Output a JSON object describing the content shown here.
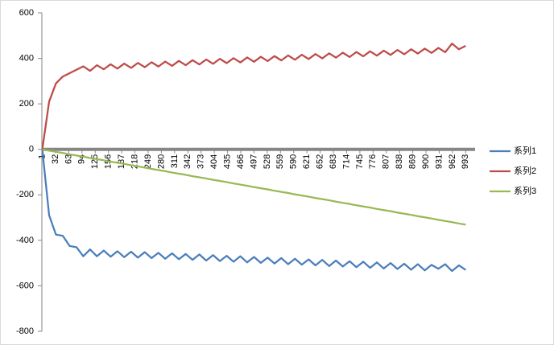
{
  "chart_data": {
    "type": "line",
    "x": [
      1,
      17,
      33,
      49,
      65,
      81,
      97,
      113,
      129,
      145,
      161,
      177,
      193,
      209,
      225,
      241,
      257,
      273,
      289,
      305,
      321,
      337,
      353,
      369,
      385,
      401,
      417,
      433,
      449,
      465,
      481,
      497,
      513,
      529,
      545,
      561,
      577,
      593,
      609,
      625,
      641,
      657,
      673,
      689,
      705,
      721,
      737,
      753,
      769,
      785,
      801,
      817,
      833,
      849,
      865,
      881,
      897,
      913,
      929,
      945,
      961,
      977,
      993
    ],
    "series": [
      {
        "name": "系列1",
        "color": "#4a7ebb",
        "values": [
          0,
          -290,
          -375,
          -380,
          -425,
          -430,
          -470,
          -440,
          -470,
          -445,
          -472,
          -448,
          -474,
          -450,
          -476,
          -452,
          -478,
          -455,
          -481,
          -457,
          -483,
          -460,
          -486,
          -462,
          -489,
          -465,
          -491,
          -468,
          -494,
          -470,
          -497,
          -473,
          -499,
          -476,
          -502,
          -478,
          -505,
          -481,
          -507,
          -484,
          -510,
          -486,
          -513,
          -489,
          -515,
          -492,
          -518,
          -494,
          -521,
          -497,
          -524,
          -500,
          -526,
          -503,
          -529,
          -505,
          -532,
          -508,
          -525,
          -505,
          -535,
          -510,
          -530
        ]
      },
      {
        "name": "系列2",
        "color": "#be4b48",
        "values": [
          0,
          210,
          290,
          320,
          335,
          350,
          365,
          345,
          370,
          352,
          374,
          355,
          377,
          358,
          380,
          361,
          383,
          364,
          386,
          367,
          389,
          370,
          392,
          373,
          395,
          376,
          398,
          379,
          401,
          382,
          404,
          385,
          407,
          388,
          410,
          391,
          413,
          394,
          416,
          397,
          419,
          400,
          422,
          403,
          425,
          406,
          428,
          409,
          431,
          412,
          434,
          415,
          437,
          418,
          440,
          421,
          443,
          424,
          446,
          427,
          465,
          440,
          455
        ]
      },
      {
        "name": "系列3",
        "color": "#98b954",
        "values": [
          0,
          -6,
          -11,
          -16,
          -22,
          -27,
          -32,
          -38,
          -43,
          -48,
          -54,
          -59,
          -64,
          -70,
          -75,
          -80,
          -86,
          -91,
          -96,
          -102,
          -107,
          -112,
          -118,
          -123,
          -128,
          -134,
          -139,
          -144,
          -150,
          -155,
          -160,
          -166,
          -171,
          -176,
          -182,
          -187,
          -192,
          -198,
          -203,
          -208,
          -214,
          -219,
          -224,
          -230,
          -235,
          -240,
          -246,
          -251,
          -256,
          -262,
          -267,
          -272,
          -278,
          -283,
          -288,
          -294,
          -299,
          -304,
          -310,
          -315,
          -320,
          -326,
          -331
        ]
      }
    ],
    "xlim": [
      0,
      1015
    ],
    "xticks": [
      1,
      32,
      63,
      94,
      125,
      156,
      187,
      218,
      249,
      280,
      311,
      342,
      373,
      404,
      435,
      466,
      497,
      528,
      559,
      590,
      621,
      652,
      683,
      714,
      745,
      776,
      807,
      838,
      869,
      900,
      931,
      962,
      993
    ],
    "ylim": [
      -800,
      600
    ],
    "yticks": [
      -800,
      -600,
      -400,
      -200,
      0,
      200,
      400,
      600
    ],
    "grid": false,
    "legend": "right"
  }
}
